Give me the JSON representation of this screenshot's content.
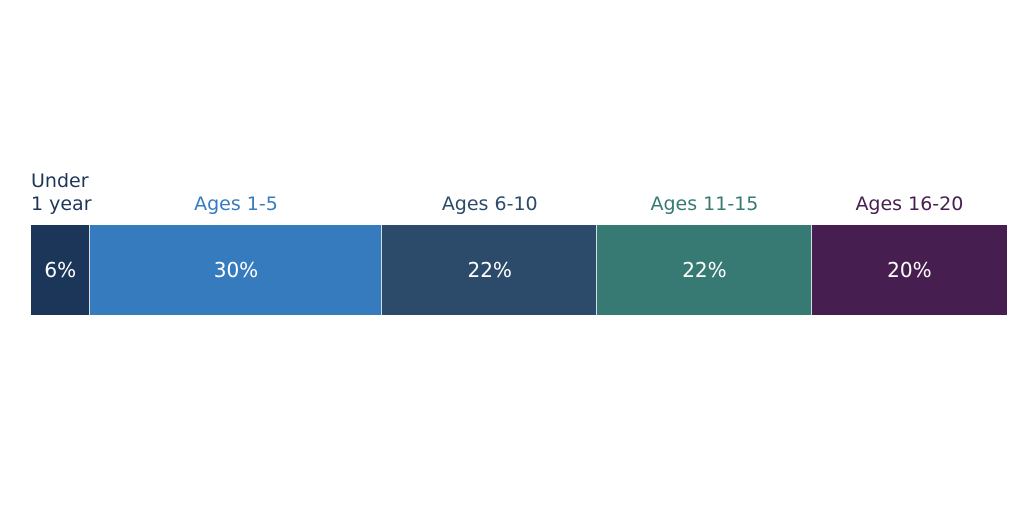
{
  "chart_data": {
    "type": "bar",
    "stacked": true,
    "orientation": "horizontal",
    "categories": [
      "Under 1 year",
      "Ages 1-5",
      "Ages 6-10",
      "Ages 11-15",
      "Ages 16-20"
    ],
    "values": [
      6,
      30,
      22,
      22,
      20
    ],
    "value_labels": [
      "6%",
      "30%",
      "22%",
      "22%",
      "20%"
    ],
    "colors": [
      "#1c3659",
      "#377bbf",
      "#2c4b6a",
      "#377a73",
      "#461e4f"
    ]
  }
}
